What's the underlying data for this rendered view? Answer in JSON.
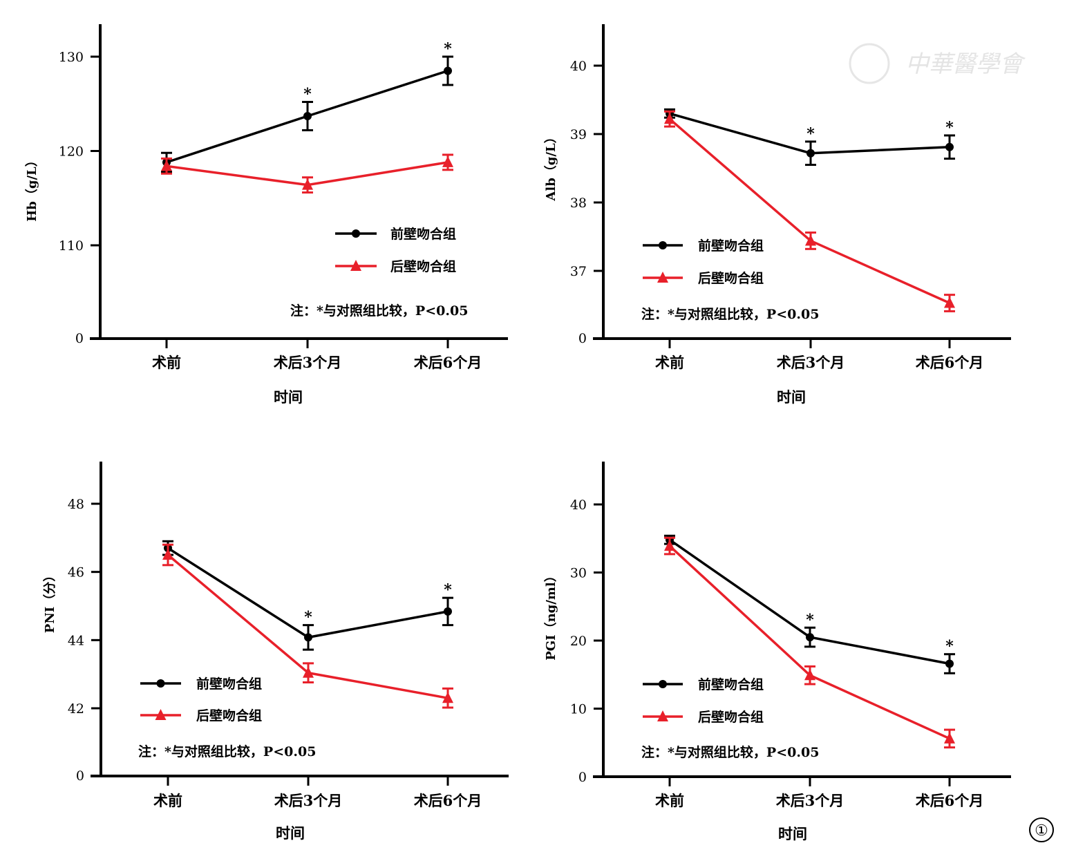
{
  "figure_label": "①",
  "watermark": "中華醫學會",
  "colors": {
    "anterior": "#000000",
    "posterior": "#e8202a"
  },
  "chart_data": [
    {
      "type": "line",
      "ylabel": "Hb（g/L）",
      "xlabel": "时间",
      "categories": [
        "术前",
        "术后3个月",
        "术后6个月"
      ],
      "yticks": [
        110,
        120,
        130
      ],
      "axis_break_label": "0",
      "series": [
        {
          "name": "前壁吻合组",
          "marker": "circle",
          "values": [
            118.8,
            123.7,
            128.5
          ],
          "errors": [
            1.0,
            1.5,
            1.5
          ],
          "significant": [
            false,
            true,
            true
          ]
        },
        {
          "name": "后壁吻合组",
          "marker": "triangle",
          "values": [
            118.4,
            116.4,
            118.8
          ],
          "errors": [
            0.8,
            0.8,
            0.8
          ],
          "significant": [
            false,
            false,
            false
          ]
        }
      ],
      "note": "注：*与对照组比较，P<0.05",
      "legend": "center-right"
    },
    {
      "type": "line",
      "ylabel": "Alb（g/L）",
      "xlabel": "时间",
      "categories": [
        "术前",
        "术后3个月",
        "术后6个月"
      ],
      "yticks": [
        37,
        38,
        39,
        40
      ],
      "axis_break_label": "0",
      "series": [
        {
          "name": "前壁吻合组",
          "marker": "circle",
          "values": [
            39.3,
            38.72,
            38.81
          ],
          "errors": [
            0.06,
            0.17,
            0.17
          ],
          "significant": [
            false,
            true,
            true
          ]
        },
        {
          "name": "后壁吻合组",
          "marker": "triangle",
          "values": [
            39.22,
            37.44,
            36.53
          ],
          "errors": [
            0.11,
            0.12,
            0.12
          ],
          "significant": [
            false,
            false,
            false
          ]
        }
      ],
      "note": "注：*与对照组比较，P<0.05",
      "legend": "center-left"
    },
    {
      "type": "line",
      "ylabel": "PNI（分）",
      "xlabel": "时间",
      "categories": [
        "术前",
        "术后3个月",
        "术后6个月"
      ],
      "yticks": [
        42,
        44,
        46,
        48
      ],
      "axis_break_label": "0",
      "series": [
        {
          "name": "前壁吻合组",
          "marker": "circle",
          "values": [
            46.7,
            44.08,
            44.84
          ],
          "errors": [
            0.2,
            0.36,
            0.4
          ],
          "significant": [
            false,
            true,
            true
          ]
        },
        {
          "name": "后壁吻合组",
          "marker": "triangle",
          "values": [
            46.5,
            43.04,
            42.3
          ],
          "errors": [
            0.3,
            0.28,
            0.28
          ],
          "significant": [
            false,
            false,
            false
          ]
        }
      ],
      "note": "注：*与对照组比较，P<0.05",
      "legend": "bottom-left"
    },
    {
      "type": "line",
      "ylabel": "PGⅠ（ng/ml）",
      "xlabel": "时间",
      "categories": [
        "术前",
        "术后3个月",
        "术后6个月"
      ],
      "yticks": [
        0,
        10,
        20,
        30,
        40
      ],
      "axis_break_label": null,
      "series": [
        {
          "name": "前壁吻合组",
          "marker": "circle",
          "values": [
            34.8,
            20.5,
            16.6
          ],
          "errors": [
            0.6,
            1.4,
            1.4
          ],
          "significant": [
            false,
            true,
            true
          ]
        },
        {
          "name": "后壁吻合组",
          "marker": "triangle",
          "values": [
            33.9,
            14.9,
            5.6
          ],
          "errors": [
            1.2,
            1.3,
            1.3
          ],
          "significant": [
            false,
            false,
            false
          ]
        }
      ],
      "note": "注：*与对照组比较，P<0.05",
      "legend": "bottom-left"
    }
  ]
}
